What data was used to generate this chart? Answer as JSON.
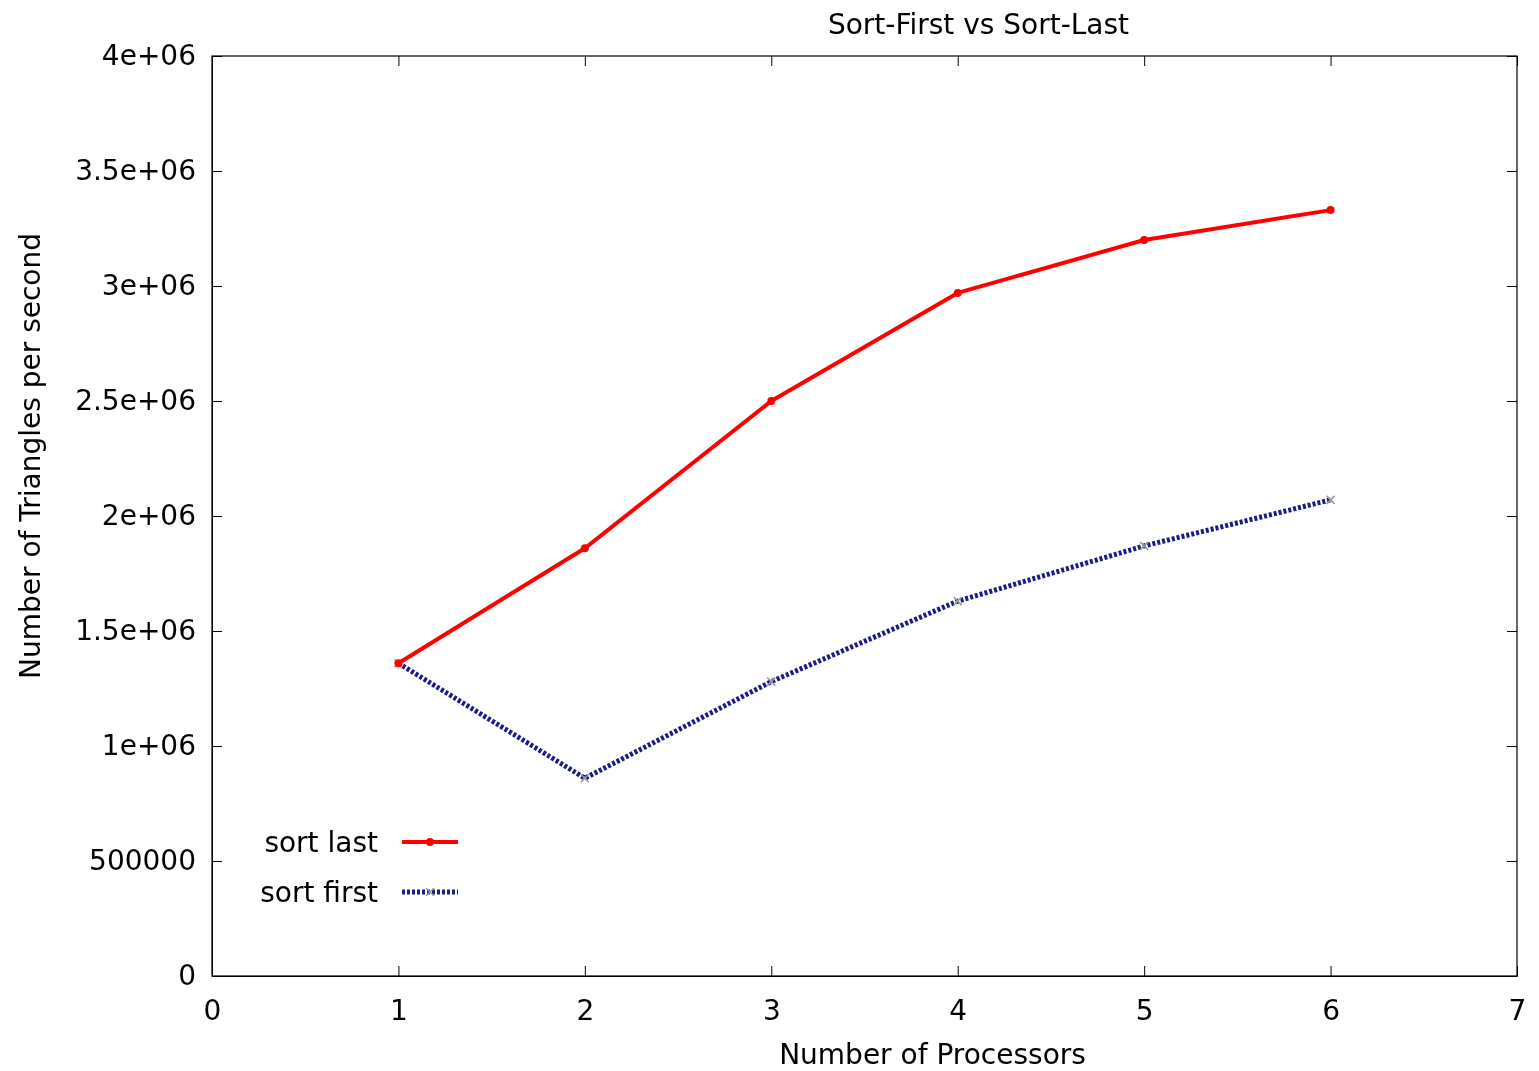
{
  "chart_data": {
    "type": "line",
    "title": "Sort-First vs Sort-Last",
    "xlabel": "Number of Processors",
    "ylabel": "Number of Triangles per second",
    "x": [
      1,
      2,
      3,
      4,
      5,
      6
    ],
    "series": [
      {
        "name": "sort last",
        "color": "#ff0000",
        "values": [
          1360000,
          1860000,
          2500000,
          2970000,
          3200000,
          3330000
        ],
        "marker": "circle",
        "line_style": "solid"
      },
      {
        "name": "sort first",
        "color": "#1a1a8c",
        "values": [
          1360000,
          860000,
          1280000,
          1630000,
          1870000,
          2070000
        ],
        "marker": "cross",
        "line_style": "dotted"
      }
    ],
    "xlim": [
      0,
      7
    ],
    "xticks": [
      0,
      1,
      2,
      3,
      4,
      5,
      6,
      7
    ],
    "ylim": [
      0,
      4000000
    ],
    "yticks": [
      0,
      500000,
      {
        "value": 1000000,
        "label": "1e+06"
      },
      {
        "value": 1500000,
        "label": "1.5e+06"
      },
      {
        "value": 2000000,
        "label": "2e+06"
      },
      {
        "value": 2500000,
        "label": "2.5e+06"
      },
      {
        "value": 3000000,
        "label": "3e+06"
      },
      {
        "value": 3500000,
        "label": "3.5e+06"
      },
      {
        "value": 4000000,
        "label": "4e+06"
      }
    ],
    "grid": false,
    "legend": "bottom left"
  }
}
